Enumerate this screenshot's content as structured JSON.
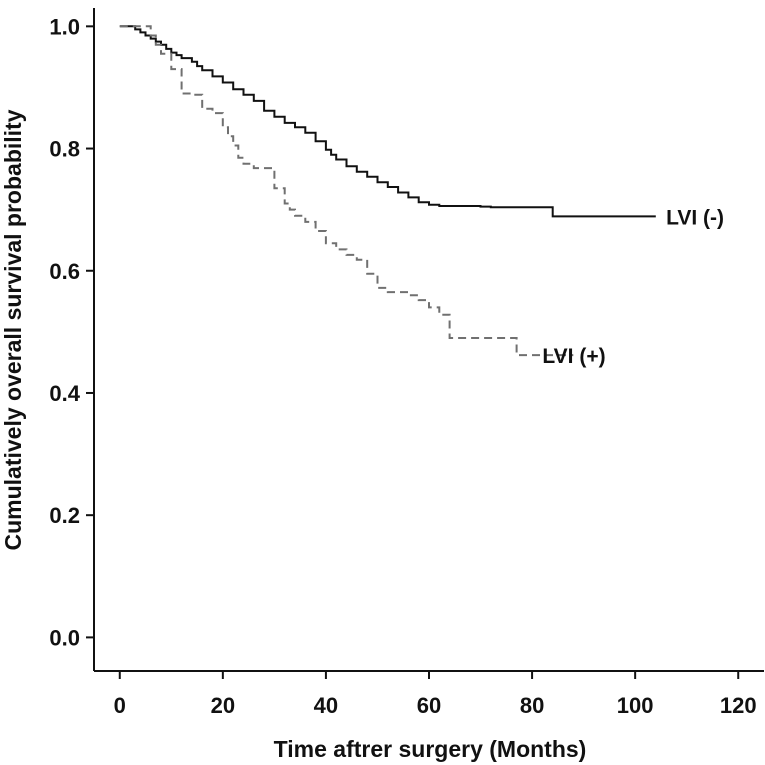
{
  "chart_data": {
    "type": "line",
    "xlabel": "Time aftrer surgery (Months)",
    "ylabel": "Cumulatively overall survival probability",
    "xlim": [
      -5,
      125
    ],
    "ylim": [
      -0.055,
      1.03
    ],
    "x_ticks": [
      0,
      20,
      40,
      60,
      80,
      100,
      120
    ],
    "y_ticks": [
      0.0,
      0.2,
      0.4,
      0.6,
      0.8,
      1.0
    ],
    "x_tick_labels": [
      "0",
      "20",
      "40",
      "60",
      "80",
      "100",
      "120"
    ],
    "y_tick_labels": [
      "0.0",
      "0.2",
      "0.4",
      "0.6",
      "0.8",
      "1.0"
    ],
    "grid": false,
    "legend": "none",
    "series": [
      {
        "name": "LVI (-)",
        "style": "solid",
        "color": "#111111",
        "x": [
          0,
          2,
          3,
          4,
          5,
          6,
          7,
          8,
          9,
          10,
          11,
          12,
          14,
          15,
          16,
          18,
          20,
          22,
          24,
          26,
          28,
          30,
          32,
          34,
          36,
          38,
          40,
          41,
          42,
          44,
          46,
          48,
          50,
          52,
          54,
          56,
          58,
          60,
          62,
          64,
          66,
          68,
          70,
          72,
          74,
          76,
          78,
          80,
          82,
          84,
          90,
          96,
          100,
          104
        ],
        "y": [
          1.0,
          1.0,
          0.995,
          0.99,
          0.985,
          0.98,
          0.975,
          0.97,
          0.963,
          0.957,
          0.953,
          0.948,
          0.942,
          0.935,
          0.928,
          0.918,
          0.908,
          0.897,
          0.888,
          0.878,
          0.862,
          0.852,
          0.842,
          0.835,
          0.826,
          0.812,
          0.798,
          0.79,
          0.782,
          0.771,
          0.762,
          0.754,
          0.745,
          0.737,
          0.728,
          0.72,
          0.712,
          0.708,
          0.706,
          0.706,
          0.706,
          0.706,
          0.705,
          0.704,
          0.704,
          0.704,
          0.704,
          0.704,
          0.704,
          0.689,
          0.689,
          0.689,
          0.689,
          0.689
        ]
      },
      {
        "name": "LVI (+)",
        "style": "dashed",
        "color": "#707070",
        "x": [
          0,
          4,
          6,
          7,
          8,
          10,
          12,
          14,
          16,
          18,
          20,
          21,
          22,
          23,
          24,
          26,
          28,
          30,
          32,
          33,
          34,
          36,
          38,
          40,
          42,
          44,
          46,
          48,
          50,
          52,
          54,
          56,
          58,
          60,
          62,
          64,
          66,
          70,
          74,
          77,
          80,
          84,
          88
        ],
        "y": [
          1.0,
          1.0,
          0.985,
          0.97,
          0.955,
          0.93,
          0.89,
          0.888,
          0.865,
          0.858,
          0.835,
          0.82,
          0.805,
          0.785,
          0.775,
          0.768,
          0.768,
          0.735,
          0.71,
          0.7,
          0.69,
          0.68,
          0.665,
          0.645,
          0.635,
          0.626,
          0.618,
          0.595,
          0.572,
          0.565,
          0.565,
          0.56,
          0.552,
          0.54,
          0.528,
          0.49,
          0.49,
          0.49,
          0.49,
          0.462,
          0.462,
          0.462,
          0.462
        ]
      }
    ],
    "annotations": [
      {
        "text": "LVI (-)",
        "x": 106,
        "y": 0.689
      },
      {
        "text": "LVI (+)",
        "x": 82,
        "y": 0.462
      }
    ]
  }
}
